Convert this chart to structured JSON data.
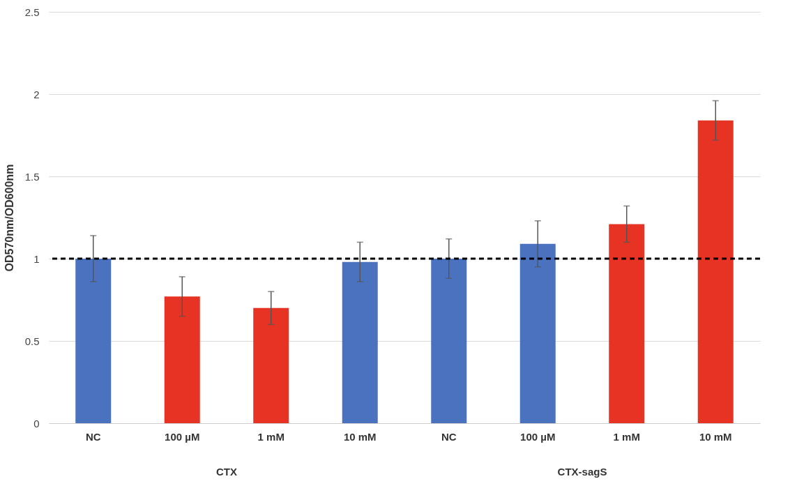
{
  "chart_data": {
    "type": "bar",
    "ylabel": "OD570nm/OD600nm",
    "categories": [
      "NC",
      "100 µM",
      "1 mM",
      "10 mM",
      "NC",
      "100 µM",
      "1 mM",
      "10 mM"
    ],
    "values": [
      1.0,
      0.77,
      0.7,
      0.98,
      1.0,
      1.09,
      1.21,
      1.84
    ],
    "errors": [
      0.14,
      0.12,
      0.1,
      0.12,
      0.12,
      0.14,
      0.11,
      0.12
    ],
    "colors": [
      "#4a72bf",
      "#e63323",
      "#e63323",
      "#4a72bf",
      "#4a72bf",
      "#4a72bf",
      "#e63323",
      "#e63323"
    ],
    "ylim": [
      0,
      2.5
    ],
    "yticks": [
      0,
      0.5,
      1,
      1.5,
      2,
      2.5
    ],
    "grid": "y",
    "ref_lines": [
      {
        "axis": "y",
        "value": 1,
        "color": "#000000",
        "line_style": "dashed"
      }
    ],
    "annotations": [
      "CTX",
      "CTX-sagS"
    ]
  }
}
